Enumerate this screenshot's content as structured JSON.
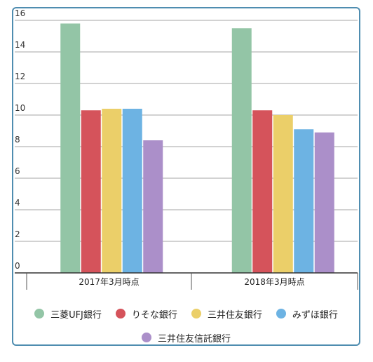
{
  "chart_data": {
    "type": "bar",
    "categories": [
      "2017年3月時点",
      "2018年3月時点"
    ],
    "series": [
      {
        "name": "三菱UFJ銀行",
        "values": [
          15.8,
          15.5
        ],
        "color": "#93c5a6"
      },
      {
        "name": "りそな銀行",
        "values": [
          10.3,
          10.3
        ],
        "color": "#d5535b"
      },
      {
        "name": "三井住友銀行",
        "values": [
          10.4,
          10.0
        ],
        "color": "#ebcf69"
      },
      {
        "name": "みずほ銀行",
        "values": [
          10.4,
          9.1
        ],
        "color": "#6db3e3"
      },
      {
        "name": "三井住友信託銀行",
        "values": [
          8.4,
          8.9
        ],
        "color": "#ab8fc9"
      }
    ],
    "ylim": [
      0,
      16
    ],
    "yticks": [
      "0",
      "2",
      "4",
      "6",
      "8",
      "10",
      "12",
      "14",
      "16"
    ],
    "grid": true,
    "legend": "bottom"
  }
}
